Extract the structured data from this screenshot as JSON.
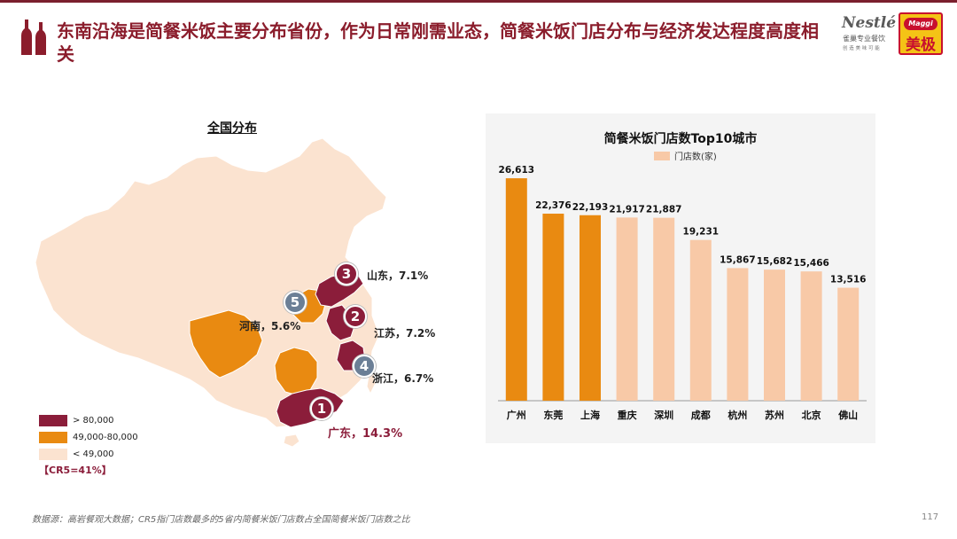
{
  "header": {
    "title": "东南沿海是简餐米饭主要分布省份，作为日常刚需业态，简餐米饭门店分布与经济发达程度高度相关",
    "logos": {
      "nestle_word": "Nestlé",
      "nestle_sub": "雀巢专业餐饮",
      "nestle_tag": "创 造 美 味 可 能",
      "maggi_word": "Maggi",
      "maggi_cn": "美极"
    }
  },
  "map": {
    "section_label": "全国分布",
    "badges": [
      {
        "rank": "1",
        "province": "广东",
        "label": "广东，14.3%"
      },
      {
        "rank": "2",
        "province": "江苏",
        "label": "江苏，7.2%"
      },
      {
        "rank": "3",
        "province": "山东",
        "label": "山东，7.1%"
      },
      {
        "rank": "4",
        "province": "浙江",
        "label": "浙江，6.7%"
      },
      {
        "rank": "5",
        "province": "河南",
        "label": "河南，5.6%"
      }
    ],
    "legend": [
      {
        "label": "> 80,000",
        "color": "#8b1d3a"
      },
      {
        "label": "49,000-80,000",
        "color": "#e98a11"
      },
      {
        "label": "< 49,000",
        "color": "#fbe3d0"
      }
    ],
    "cr5": "【CR5=41%】"
  },
  "chart_data": {
    "type": "bar",
    "title": "简餐米饭门店数Top10城市",
    "legend": [
      "门店数(家)"
    ],
    "categories": [
      "广州",
      "东莞",
      "上海",
      "重庆",
      "深圳",
      "成都",
      "杭州",
      "苏州",
      "北京",
      "佛山"
    ],
    "values": [
      26613,
      22376,
      22193,
      21917,
      21887,
      19231,
      15867,
      15682,
      15466,
      13516
    ],
    "value_labels": [
      "26,613",
      "22,376",
      "22,193",
      "21,917",
      "21,887",
      "19,231",
      "15,867",
      "15,682",
      "15,466",
      "13,516"
    ],
    "highlight_count": 3,
    "colors": {
      "highlight": "#e98a11",
      "normal": "#f8c9a7"
    },
    "ylim": [
      0,
      28000
    ],
    "xlabel": "",
    "ylabel": ""
  },
  "footer": {
    "source": "数据源：高岩餐观大数据；CR5指门店数最多的5省内简餐米饭门店数占全国简餐米饭门店数之比",
    "page": "117"
  }
}
